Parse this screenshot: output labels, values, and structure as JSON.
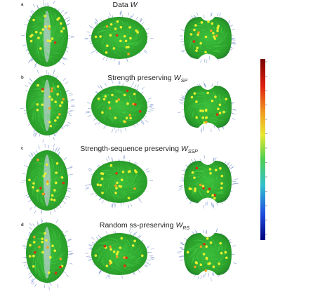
{
  "panels": [
    {
      "label": "a",
      "title": {
        "text": "Data ",
        "var": "W"
      }
    },
    {
      "label": "b",
      "title": {
        "text": "Strength preserving ",
        "var": "W",
        "sub": "SP"
      }
    },
    {
      "label": "c",
      "title": {
        "text": "Strength-sequence preserving ",
        "var": "W",
        "sub": "SSP"
      }
    },
    {
      "label": "d",
      "title": {
        "text": "Random ss-preserving ",
        "var": "W",
        "sub": "RS"
      }
    }
  ]
}
